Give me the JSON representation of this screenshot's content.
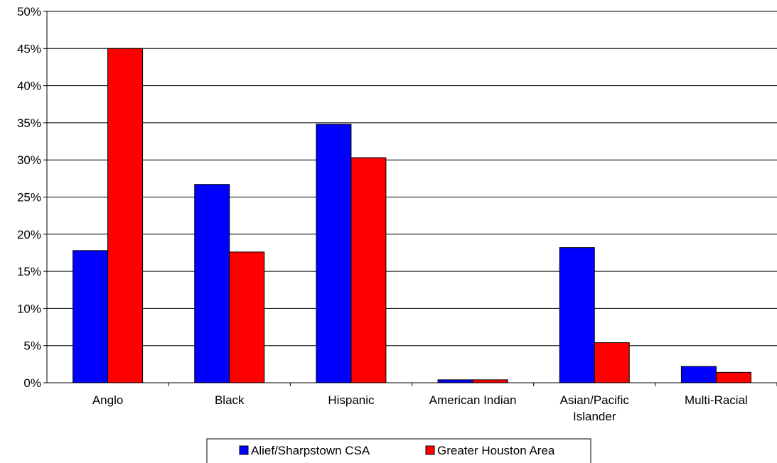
{
  "chart_data": {
    "type": "bar",
    "categories": [
      [
        "Anglo"
      ],
      [
        "Black"
      ],
      [
        "Hispanic"
      ],
      [
        "American Indian"
      ],
      [
        "Asian/Pacific",
        "Islander"
      ],
      [
        "Multi-Racial"
      ]
    ],
    "series": [
      {
        "name": "Alief/Sharpstown CSA",
        "color": "#0000ff",
        "values": [
          17.8,
          26.7,
          34.8,
          0.4,
          18.2,
          2.2
        ]
      },
      {
        "name": "Greater Houston Area",
        "color": "#ff0000",
        "values": [
          45.0,
          17.6,
          30.3,
          0.4,
          5.4,
          1.4
        ]
      }
    ],
    "yticks": [
      "0%",
      "5%",
      "10%",
      "15%",
      "20%",
      "25%",
      "30%",
      "35%",
      "40%",
      "45%",
      "50%"
    ],
    "ylim": [
      0,
      50
    ],
    "grid": true,
    "legend_position": "bottom"
  }
}
